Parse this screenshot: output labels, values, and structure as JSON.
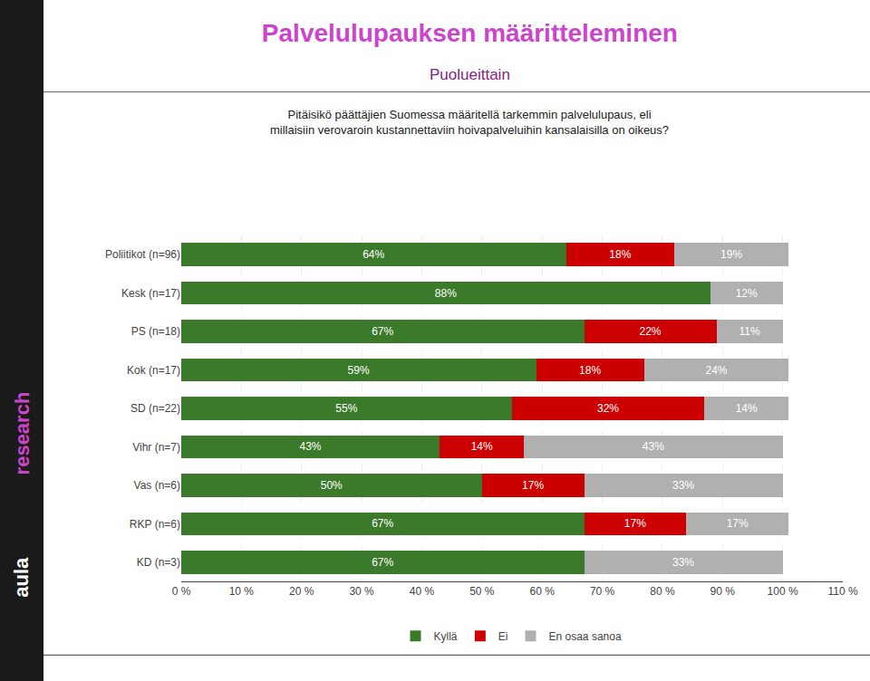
{
  "chart_data": {
    "type": "bar",
    "orientation": "horizontal",
    "stacked": true,
    "title": "Palvelulupauksen määritteleminen",
    "subtitle": "Puolueittain",
    "annotations": [
      {
        "text": "Pitäisikö päättäjien Suomessa määritellä tarkemmin palvelulupaus, eli\nmillaisiin verovaroin kustannettaviin hoivapalveluihin kansalaisilla on oikeus?"
      },
      {
        "text": "aula",
        "color": "#ffffff"
      },
      {
        "text": "research",
        "color": "#cc44cc"
      }
    ],
    "categories": [
      "Poliitikot (n=96)",
      "Kesk (n=17)",
      "PS (n=18)",
      "Kok (n=17)",
      "SD (n=22)",
      "Vihr (n=7)",
      "Vas (n=6)",
      "RKP (n=6)",
      "KD (n=3)"
    ],
    "series": [
      {
        "name": "Kyllä",
        "color": "#3a7a2a",
        "values": [
          64,
          88,
          67,
          59,
          55,
          43,
          50,
          67,
          67
        ],
        "value_labels": [
          "64%",
          "88%",
          "67%",
          "59%",
          "55%",
          "43%",
          "50%",
          "67%",
          "67%"
        ]
      },
      {
        "name": "Ei",
        "color": "#cc0000",
        "values": [
          18,
          0,
          22,
          18,
          32,
          14,
          17,
          17,
          0
        ],
        "value_labels": [
          "18%",
          null,
          "22%",
          "18%",
          "32%",
          "14%",
          "17%",
          "17%",
          null
        ]
      },
      {
        "name": "En osaa sanoa",
        "color": "#b0b0b0",
        "values": [
          19,
          12,
          11,
          24,
          14,
          43,
          33,
          17,
          33
        ],
        "value_labels": [
          "19%",
          "12%",
          "11%",
          "24%",
          "14%",
          "43%",
          "33%",
          "17%",
          "33%"
        ]
      }
    ],
    "xlim": [
      0,
      110
    ],
    "xticks": [
      {
        "value": 0,
        "label": "0 %"
      },
      {
        "value": 10,
        "label": "10 %"
      },
      {
        "value": 20,
        "label": "20 %"
      },
      {
        "value": 30,
        "label": "30 %"
      },
      {
        "value": 40,
        "label": "40 %"
      },
      {
        "value": 50,
        "label": "50 %"
      },
      {
        "value": 60,
        "label": "60 %"
      },
      {
        "value": 70,
        "label": "70 %"
      },
      {
        "value": 80,
        "label": "80 %"
      },
      {
        "value": 90,
        "label": "90 %"
      },
      {
        "value": 100,
        "label": "100 %"
      },
      {
        "value": 110,
        "label": "110 %"
      }
    ],
    "grid": true,
    "legend": "bottom",
    "data_labels": true
  }
}
